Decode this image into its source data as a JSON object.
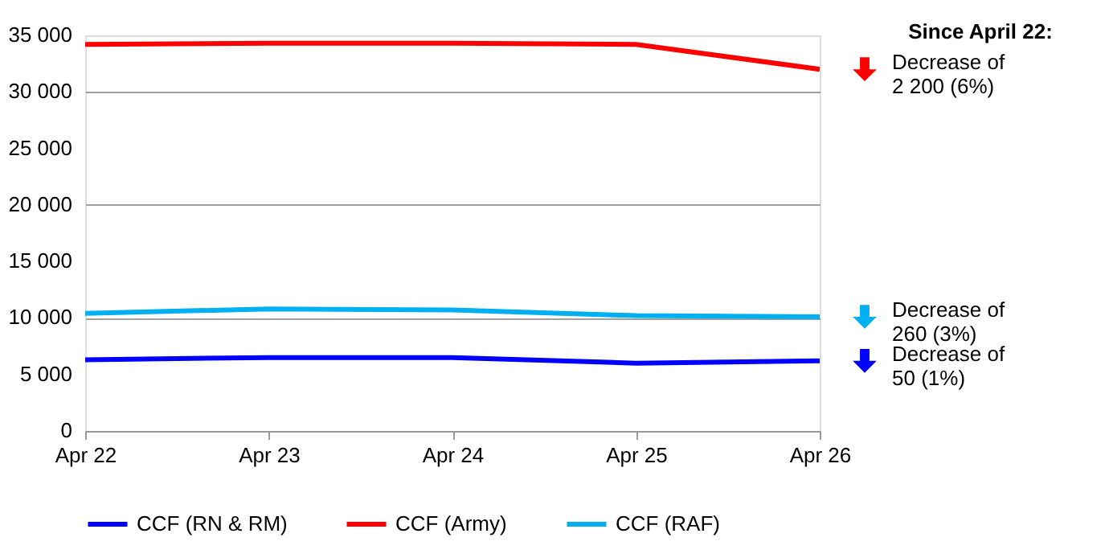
{
  "chart_data": {
    "type": "line",
    "categories": [
      "Apr 22",
      "Apr 23",
      "Apr 24",
      "Apr 25",
      "Apr 26"
    ],
    "series": [
      {
        "name": "CCF (RN & RM)",
        "color": "#0000ff",
        "values": [
          6300,
          6500,
          6500,
          6000,
          6200
        ]
      },
      {
        "name": "CCF (Army)",
        "color": "#ff0000",
        "values": [
          34200,
          34300,
          34300,
          34200,
          32000
        ]
      },
      {
        "name": "CCF (RAF)",
        "color": "#00b0f0",
        "values": [
          10400,
          10800,
          10700,
          10200,
          10100
        ]
      }
    ],
    "ylim": [
      0,
      35000
    ],
    "yticks": [
      {
        "value": 0,
        "label": "0"
      },
      {
        "value": 5000,
        "label": "5 000"
      },
      {
        "value": 10000,
        "label": "10 000"
      },
      {
        "value": 15000,
        "label": "15 000"
      },
      {
        "value": 20000,
        "label": "20 000"
      },
      {
        "value": 25000,
        "label": "25 000"
      },
      {
        "value": 30000,
        "label": "30 000"
      },
      {
        "value": 35000,
        "label": "35 000"
      }
    ],
    "grid": "y",
    "legend": "bottom",
    "marker": "none",
    "line_style": "solid",
    "annotations": [
      "Since April 22:",
      "Decrease of\n2 200 (6%)",
      "Decrease of\n260 (3%)",
      "Decrease of\n50 (1%)"
    ]
  }
}
